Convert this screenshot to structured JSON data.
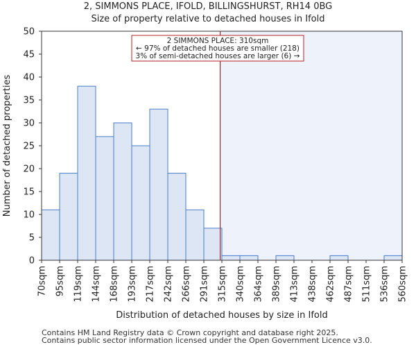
{
  "chart_data": {
    "type": "bar",
    "title": "2, SIMMONS PLACE, IFOLD, BILLINGSHURST, RH14 0BG",
    "subtitle": "Size of property relative to detached houses in Ifold",
    "xlabel": "Distribution of detached houses by size in Ifold",
    "ylabel": "Number of detached properties",
    "ylim": [
      0,
      50
    ],
    "yticks": [
      0,
      5,
      10,
      15,
      20,
      25,
      30,
      35,
      40,
      45,
      50
    ],
    "bin_edges": [
      70,
      95,
      119,
      144,
      168,
      193,
      217,
      242,
      266,
      291,
      315,
      340,
      364,
      389,
      413,
      438,
      462,
      487,
      511,
      536,
      560
    ],
    "tick_labels": [
      "70sqm",
      "95sqm",
      "119sqm",
      "144sqm",
      "168sqm",
      "193sqm",
      "217sqm",
      "242sqm",
      "266sqm",
      "291sqm",
      "315sqm",
      "340sqm",
      "364sqm",
      "389sqm",
      "413sqm",
      "438sqm",
      "462sqm",
      "487sqm",
      "511sqm",
      "536sqm",
      "560sqm"
    ],
    "values": [
      11,
      19,
      38,
      27,
      30,
      25,
      33,
      19,
      11,
      7,
      1,
      1,
      0,
      1,
      0,
      0,
      1,
      0,
      0,
      1
    ],
    "property_size": 310,
    "annotation": {
      "line1": "2 SIMMONS PLACE: 310sqm",
      "line2": "← 97% of detached houses are smaller (218)",
      "line3": "3% of semi-detached houses are larger (6) →"
    },
    "colors": {
      "bar_fill": "#dce6f5",
      "bar_edge": "#4a7cc7",
      "highlight_region": "#eef2fb",
      "marker_line": "#b22222",
      "annotation_border": "#b22222"
    }
  },
  "footer": {
    "line1": "Contains HM Land Registry data © Crown copyright and database right 2025.",
    "line2": "Contains public sector information licensed under the Open Government Licence v3.0."
  }
}
